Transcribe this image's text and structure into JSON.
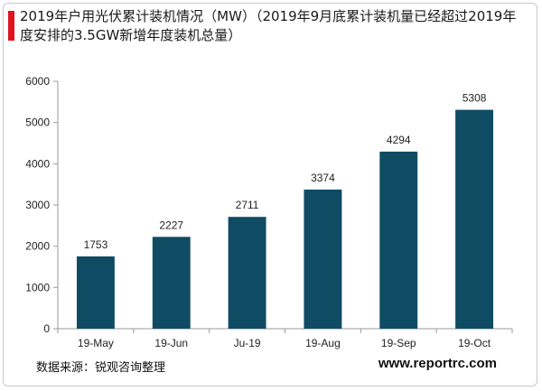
{
  "header": {
    "title": "2019年户用光伏累计装机情况（MW）（2019年9月底累计装机量已经超过2019年度安排的3.5GW新增年度装机总量）"
  },
  "footer": {
    "source": "数据来源：锐观咨询整理",
    "website": "www.reportrc.com"
  },
  "colors": {
    "bar": "#0f4c64",
    "accent": "#e0141e",
    "axis": "#9a9a9a"
  },
  "chart_data": {
    "type": "bar",
    "title": "2019年户用光伏累计装机情况（MW）（2019年9月底累计装机量已经超过2019年度安排的3.5GW新增年度装机总量）",
    "categories": [
      "19-May",
      "19-Jun",
      "Ju-19",
      "19-Aug",
      "19-Sep",
      "19-Oct"
    ],
    "values": [
      1753,
      2227,
      2711,
      3374,
      4294,
      5308
    ],
    "data_labels": [
      "1753",
      "2227",
      "2711",
      "3374",
      "4294",
      "5308"
    ],
    "ylim": [
      0,
      6000
    ],
    "yticks": [
      0,
      1000,
      2000,
      3000,
      4000,
      5000,
      6000
    ],
    "grid": false,
    "legend": "none"
  }
}
